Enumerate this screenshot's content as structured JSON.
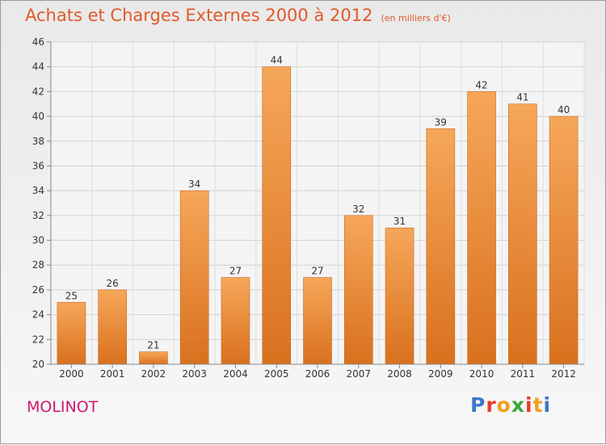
{
  "header": {
    "title": "Achats et Charges Externes 2000 à 2012",
    "unit": "(en milliers d'€)"
  },
  "footer": {
    "town": "MOLINOT",
    "brand": "Proxiti"
  },
  "colors": {
    "title": "#e05a2a",
    "town": "#cc1a6e",
    "bar_light": "#f6a75a",
    "bar_dark": "#d9711e"
  },
  "chart_data": {
    "type": "bar",
    "categories": [
      "2000",
      "2001",
      "2002",
      "2003",
      "2004",
      "2005",
      "2006",
      "2007",
      "2008",
      "2009",
      "2010",
      "2011",
      "2012"
    ],
    "values": [
      25,
      26,
      21,
      34,
      27,
      44,
      27,
      32,
      31,
      39,
      42,
      41,
      40
    ],
    "title": "Achats et Charges Externes 2000 à 2012",
    "subtitle": "(en milliers d'€)",
    "ylim": [
      20,
      46
    ],
    "yticks": [
      20,
      22,
      24,
      26,
      28,
      30,
      32,
      34,
      36,
      38,
      40,
      42,
      44,
      46
    ],
    "grid": true,
    "legend": "none"
  }
}
